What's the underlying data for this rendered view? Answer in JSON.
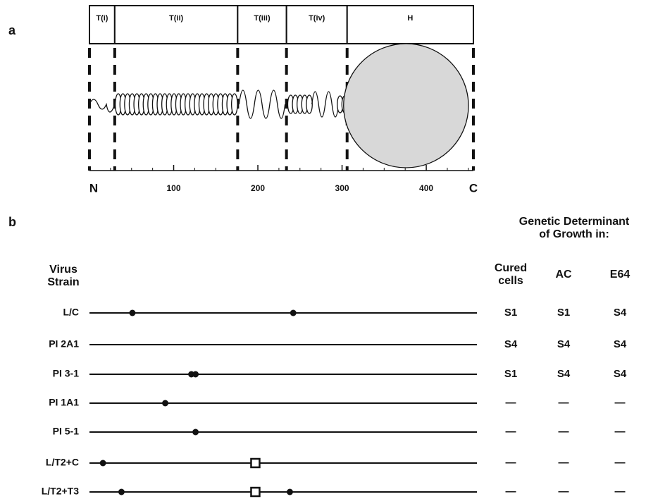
{
  "panel_a": {
    "label": "a",
    "xlim": [
      0,
      456
    ],
    "xticks": [
      100,
      200,
      300,
      400
    ],
    "start_label": "N",
    "end_label": "C",
    "domains": [
      {
        "label": "T(i)",
        "start": 0,
        "end": 30
      },
      {
        "label": "T(ii)",
        "start": 30,
        "end": 176
      },
      {
        "label": "T(iii)",
        "start": 176,
        "end": 234
      },
      {
        "label": "T(iv)",
        "start": 234,
        "end": 306
      },
      {
        "label": "H",
        "start": 306,
        "end": 456
      }
    ]
  },
  "panel_b": {
    "label": "b",
    "header": "Genetic Determinant\nof Growth in:",
    "strain_header": "Virus\nStrain",
    "columns": [
      "Cured\ncells",
      "AC",
      "E64"
    ],
    "strains": [
      {
        "name": "L/C",
        "mutations": [
          {
            "position": 51,
            "shape": "dot"
          },
          {
            "position": 242,
            "shape": "dot"
          }
        ],
        "determinants": [
          "S1",
          "S1",
          "S4"
        ]
      },
      {
        "name": "PI 2A1",
        "mutations": [],
        "determinants": [
          "S4",
          "S4",
          "S4"
        ]
      },
      {
        "name": "PI 3-1",
        "mutations": [
          {
            "position": 121,
            "shape": "dot"
          },
          {
            "position": 126,
            "shape": "dot"
          }
        ],
        "determinants": [
          "S1",
          "S4",
          "S4"
        ]
      },
      {
        "name": "PI 1A1",
        "mutations": [
          {
            "position": 90,
            "shape": "dot"
          }
        ],
        "determinants": [
          "—",
          "—",
          "—"
        ]
      },
      {
        "name": "PI 5-1",
        "mutations": [
          {
            "position": 126,
            "shape": "dot"
          }
        ],
        "determinants": [
          "—",
          "—",
          "—"
        ]
      },
      {
        "name": "L/T2+C",
        "mutations": [
          {
            "position": 16,
            "shape": "dot"
          },
          {
            "position": 197,
            "shape": "square"
          }
        ],
        "determinants": [
          "—",
          "—",
          "—"
        ]
      },
      {
        "name": "L/T2+T3",
        "mutations": [
          {
            "position": 38,
            "shape": "dot"
          },
          {
            "position": 197,
            "shape": "square"
          },
          {
            "position": 238,
            "shape": "dot"
          }
        ],
        "determinants": [
          "—",
          "—",
          "—"
        ]
      }
    ]
  }
}
